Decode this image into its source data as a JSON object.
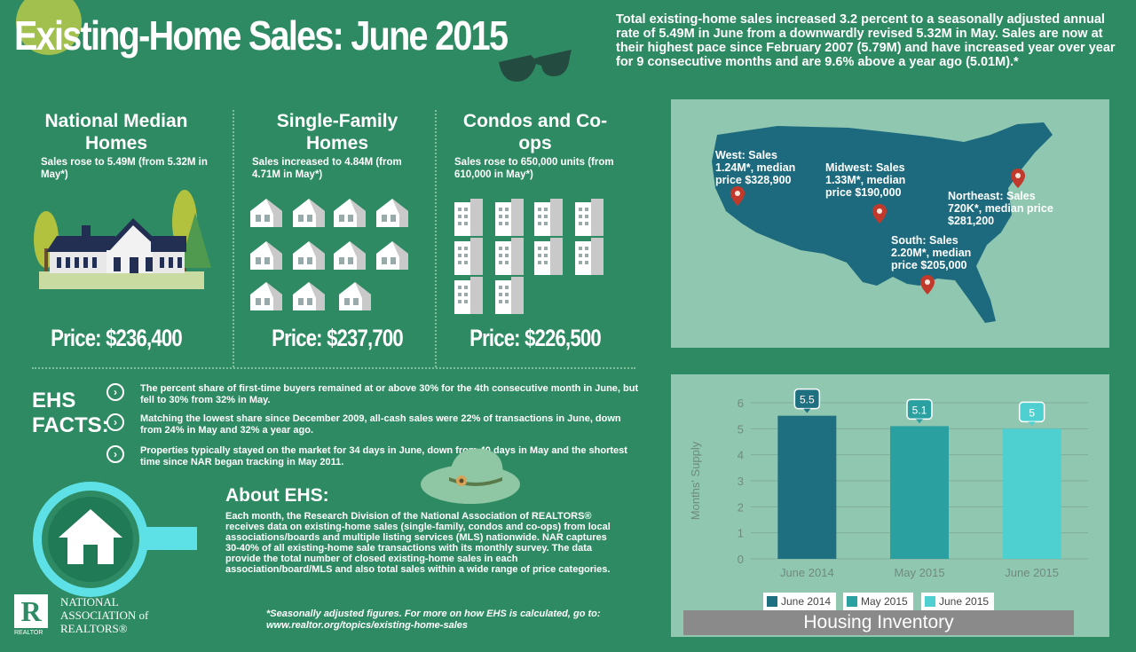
{
  "header": {
    "title": "Existing-Home Sales: June 2015",
    "intro": "Total existing-home sales increased 3.2 percent to a seasonally adjusted annual rate of 5.49M in June from a downwardly revised 5.32M in May.  Sales are now at their highest pace since February 2007 (5.79M) and have increased year over year for 9 consecutive months and are 9.6% above a year ago (5.01M).*"
  },
  "columns": [
    {
      "title": "National Median Homes",
      "subtitle": "Sales rose to 5.49M (from 5.32M in May*)",
      "price": "Price: $236,400"
    },
    {
      "title": "Single-Family Homes",
      "subtitle": "Sales increased to 4.84M (from 4.71M in May*)",
      "price": "Price: $237,700"
    },
    {
      "title": "Condos and Co-ops",
      "subtitle": "Sales rose to 650,000 units (from 610,000 in May*)",
      "price": "Price: $226,500"
    }
  ],
  "map": {
    "west": "West: Sales 1.24M*, median price $328,900",
    "midwest": "Midwest: Sales 1.33M*, median price $190,000",
    "northeast": "Northeast: Sales 720K*, median price $281,200",
    "south": "South: Sales 2.20M*, median price $205,000"
  },
  "ehs": {
    "heading_1": "EHS",
    "heading_2": "FACTS:",
    "chevron": "›",
    "facts": [
      "The percent share of first-time buyers remained at or above 30% for the 4th consecutive month in June, but fell to 30% from 32% in May.",
      "Matching the lowest share since December 2009, all-cash sales were 22% of transactions in June, down from 24% in May and 32% a year ago.",
      "Properties typically stayed on the market for 34 days in June, down from 40 days in May and the shortest time since NAR began tracking in May 2011."
    ]
  },
  "about": {
    "title": "About EHS:",
    "body": "Each month, the Research Division of the National Association of REALTORS® receives data on existing-home sales (single-family, condos and co-ops) from local associations/boards and multiple listing services (MLS) nationwide. NAR captures 30-40% of all existing-home sale transactions with its monthly survey. The data provide the total number of closed existing-home sales in each association/board/MLS and also total sales within a wide range of price categories."
  },
  "footnote": "*Seasonally adjusted figures. For more on how EHS is calculated, go to: www.realtor.org/topics/existing-home-sales",
  "logo": {
    "letter": "R",
    "small": "REALTOR",
    "line1": "NATIONAL",
    "line2": "ASSOCIATION of",
    "line3": "REALTORS®"
  },
  "chart_data": {
    "type": "bar",
    "categories": [
      "June 2014",
      "May 2015",
      "June 2015"
    ],
    "values": [
      5.5,
      5.1,
      5
    ],
    "data_labels": [
      "5.5",
      "5.1",
      "5"
    ],
    "colors": [
      "#1e7080",
      "#2aa0a0",
      "#4fd0d0"
    ],
    "ylabel": "Months' Supply",
    "ylim": [
      0,
      6
    ],
    "yticks": [
      0,
      1,
      2,
      3,
      4,
      5,
      6
    ],
    "legend": [
      "June 2014",
      "May 2015",
      "June 2015"
    ],
    "caption": "Housing Inventory"
  },
  "colors": {
    "background": "#2e8a62",
    "panel": "#90c7b0",
    "map_fill": "#1d6a7e",
    "pin": "#c0392b",
    "teal_accent": "#5de0e6"
  }
}
